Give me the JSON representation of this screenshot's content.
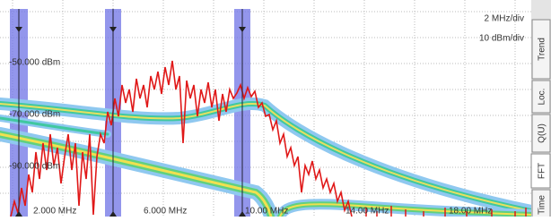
{
  "scale": {
    "x_div": "2 MHz/div",
    "y_div": "10 dBm/div"
  },
  "y_labels": [
    "-50.000 dBm",
    "-70.000 dBm",
    "-90.000 dBm"
  ],
  "x_labels": [
    "2.000 MHz",
    "6.000 MHz",
    "10.00 MHz",
    "14.00 MHz",
    "18.00 MHz"
  ],
  "tabs": [
    "Trend",
    "Loc.",
    "Q(U)",
    "FFT",
    "Time"
  ]
}
